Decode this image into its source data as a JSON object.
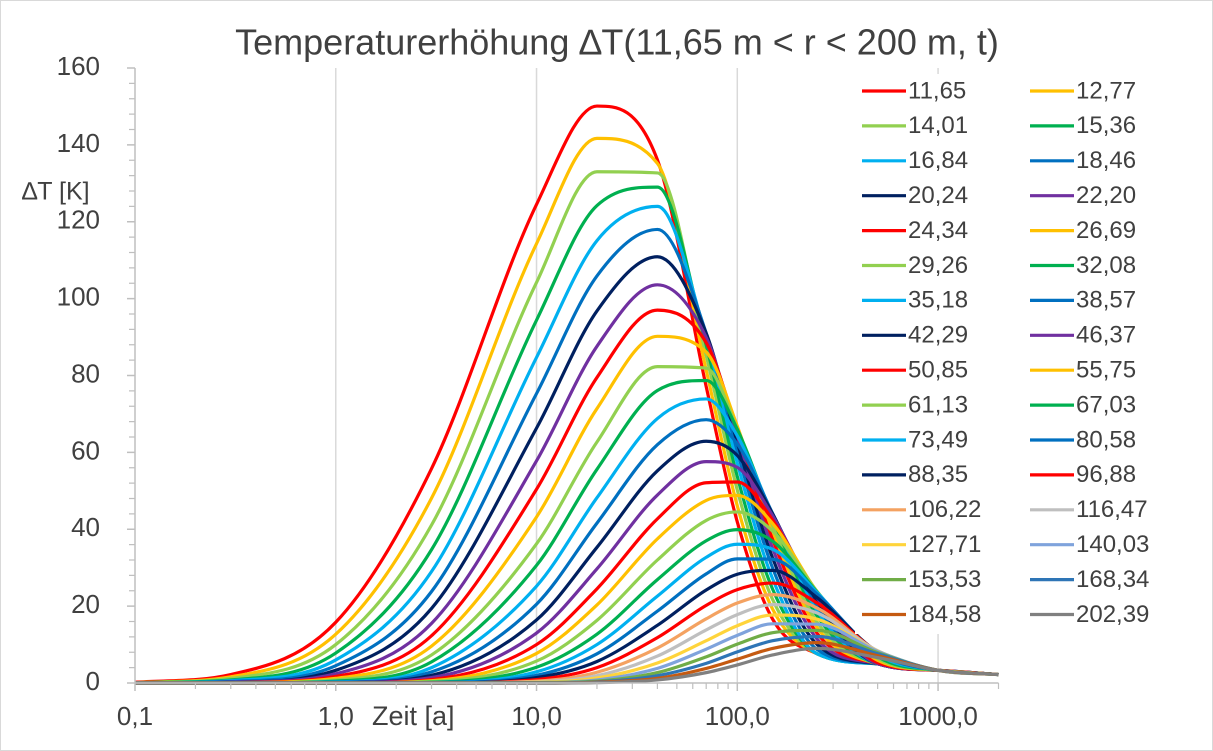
{
  "chart_data": {
    "type": "line",
    "title": "Temperaturerhöhung ∆T(11,65 m < r < 200 m, t)",
    "y_label": "∆T [K]",
    "x_label": "Zeit [a]",
    "x_scale": "log",
    "xlim": [
      0.1,
      2000
    ],
    "xticks": [
      {
        "value": 0.1,
        "label": "0,1"
      },
      {
        "value": 1,
        "label": "1,0"
      },
      {
        "value": 10,
        "label": "10,0"
      },
      {
        "value": 100,
        "label": "100,0"
      },
      {
        "value": 1000,
        "label": "1000,0"
      }
    ],
    "ylim": [
      0,
      160
    ],
    "yticks": [
      0,
      20,
      40,
      60,
      80,
      100,
      120,
      140,
      160
    ],
    "grid": "x",
    "legend": "right",
    "x": [
      0.1,
      0.3,
      1,
      3,
      10,
      20,
      40,
      70,
      100,
      150,
      250,
      500,
      1000,
      2000
    ],
    "series": [
      {
        "name": "11,65",
        "color": "#ff0000",
        "values": [
          0.2,
          2.2,
          15.8,
          55.8,
          124.5,
          150.1,
          136.1,
          77.1,
          41.9,
          16.6,
          7.6,
          5,
          3.3,
          2.2
        ]
      },
      {
        "name": "12,77",
        "color": "#ffc000",
        "values": [
          0.1,
          1.6,
          12.7,
          48.1,
          114.3,
          141.7,
          135.2,
          81.4,
          46.1,
          19.2,
          7.6,
          5,
          3.3,
          2.2
        ]
      },
      {
        "name": "14,01",
        "color": "#92d050",
        "values": [
          0.1,
          1.2,
          10.0,
          41.1,
          104.2,
          133.0,
          132.7,
          85.2,
          50.2,
          21.7,
          7.6,
          5,
          3.3,
          2.2
        ]
      },
      {
        "name": "15,36",
        "color": "#00b050",
        "values": [
          0.1,
          0.8,
          7.8,
          34.7,
          94.4,
          124.2,
          129.0,
          87.9,
          53.7,
          24.4,
          7.6,
          5,
          3.3,
          2.2
        ]
      },
      {
        "name": "16,84",
        "color": "#00b0f0",
        "values": [
          0,
          0.6,
          6.0,
          29.0,
          84.7,
          115.1,
          124.0,
          89.9,
          57.2,
          27.1,
          7.6,
          5,
          3.3,
          2.2
        ]
      },
      {
        "name": "18,46",
        "color": "#0070c0",
        "values": [
          0,
          0.4,
          4.5,
          23.8,
          75.3,
          105.9,
          118.0,
          91.0,
          60.3,
          29.9,
          8.7,
          5,
          3.3,
          2.2
        ]
      },
      {
        "name": "20,24",
        "color": "#002060",
        "values": [
          0,
          0.2,
          3.3,
          19.4,
          66.3,
          96.8,
          110.9,
          91.0,
          62.6,
          32.5,
          10.0,
          5,
          3.3,
          2.2
        ]
      },
      {
        "name": "22,20",
        "color": "#7030a0",
        "values": [
          0,
          0.2,
          2.4,
          15.5,
          57.8,
          87.6,
          103.6,
          89.9,
          64.4,
          35.0,
          11.4,
          5,
          3.3,
          2.2
        ]
      },
      {
        "name": "24,34",
        "color": "#ff0000",
        "values": [
          0,
          0.1,
          1.7,
          12.3,
          50.4,
          79.5,
          97.0,
          88.5,
          65.9,
          37.4,
          12.9,
          5,
          3.3,
          2.2
        ]
      },
      {
        "name": "26,69",
        "color": "#ffc000",
        "values": [
          0,
          0.1,
          1.2,
          9.6,
          43.2,
          71.4,
          90.2,
          86.1,
          66.8,
          39.6,
          14.4,
          5,
          3.3,
          2.2
        ]
      },
      {
        "name": "29,26",
        "color": "#92d050",
        "values": [
          0,
          0,
          0.8,
          7.3,
          36.2,
          62.7,
          82.3,
          81.9,
          66.1,
          41.0,
          15.8,
          5,
          3.3,
          2.2
        ]
      },
      {
        "name": "32,08",
        "color": "#00b050",
        "values": [
          0,
          0,
          0.5,
          5.5,
          30.6,
          55.6,
          76.1,
          78.7,
          66.0,
          42.9,
          17.4,
          5,
          3.3,
          2.2
        ]
      },
      {
        "name": "35,18",
        "color": "#00b0f0",
        "values": [
          0,
          0,
          0.3,
          4.0,
          25.2,
          48.2,
          68.8,
          73.9,
          64.3,
          43.7,
          18.8,
          5,
          3.3,
          2.2
        ]
      },
      {
        "name": "38,57",
        "color": "#0070c0",
        "values": [
          0,
          0,
          0.2,
          2.9,
          20.5,
          41.6,
          62.0,
          68.5,
          62.2,
          44.1,
          20.1,
          5,
          3.3,
          2.2
        ]
      },
      {
        "name": "42,29",
        "color": "#002060",
        "values": [
          0,
          0,
          0.1,
          2.0,
          16.4,
          35.3,
          55.2,
          62.9,
          59.2,
          44.0,
          21.2,
          5,
          3.3,
          2.2
        ]
      },
      {
        "name": "46,37",
        "color": "#7030a0",
        "values": [
          0,
          0,
          0.1,
          1.4,
          13.0,
          29.7,
          48.9,
          57.6,
          56.1,
          43.5,
          22.2,
          5,
          3.3,
          2.2
        ]
      },
      {
        "name": "50,85",
        "color": "#ff0000",
        "values": [
          0,
          0,
          0,
          0.9,
          10.0,
          24.5,
          42.7,
          52.1,
          52.3,
          42.4,
          22.9,
          5.3,
          3.3,
          2.2
        ]
      },
      {
        "name": "55,75",
        "color": "#ffc000",
        "values": [
          0,
          0,
          0,
          0.6,
          7.7,
          20.3,
          37.5,
          47.5,
          48.8,
          41.5,
          23.7,
          5.9,
          3.3,
          2.2
        ]
      },
      {
        "name": "61,13",
        "color": "#92d050",
        "values": [
          0,
          0,
          0,
          0.4,
          5.7,
          16.3,
          32.0,
          42.3,
          44.5,
          39.5,
          23.8,
          6.4,
          3.3,
          2.2
        ]
      },
      {
        "name": "67,03",
        "color": "#00b050",
        "values": [
          0,
          0,
          0,
          0.2,
          4.1,
          12.7,
          26.9,
          37.0,
          39.9,
          36.9,
          23.6,
          6.9,
          3.3,
          2.2
        ]
      },
      {
        "name": "73,49",
        "color": "#00b0f0",
        "values": [
          0,
          0,
          0,
          0.1,
          2.9,
          10.0,
          22.6,
          32.7,
          36.1,
          34.8,
          23.5,
          7.4,
          3.3,
          2.2
        ]
      },
      {
        "name": "80,58",
        "color": "#0070c0",
        "values": [
          0,
          0,
          0,
          0.1,
          2.0,
          7.6,
          18.7,
          28.4,
          32.3,
          32.2,
          23.1,
          7.8,
          3.3,
          2.2
        ]
      },
      {
        "name": "88,35",
        "color": "#002060",
        "values": [
          0,
          0,
          0,
          0,
          1.4,
          5.6,
          15.0,
          24.2,
          28.3,
          29.3,
          22.2,
          8.1,
          3.3,
          2.2
        ]
      },
      {
        "name": "96,88",
        "color": "#ff0000",
        "values": [
          0,
          0,
          0,
          0,
          0.9,
          4.0,
          11.8,
          20.2,
          24.3,
          26.0,
          20.8,
          8.2,
          3.3,
          2.2
        ]
      },
      {
        "name": "106,22",
        "color": "#f4a261",
        "values": [
          0,
          0,
          0,
          0,
          0.5,
          2.8,
          9.1,
          16.7,
          20.8,
          23.0,
          19.5,
          8.3,
          3.3,
          2.2
        ]
      },
      {
        "name": "116,47",
        "color": "#bfbfbf",
        "values": [
          0,
          0,
          0,
          0,
          0.3,
          1.9,
          7.0,
          13.8,
          17.8,
          20.4,
          18.2,
          8.4,
          3.3,
          2.2
        ]
      },
      {
        "name": "127,71",
        "color": "#ffd43b",
        "values": [
          0,
          0,
          0,
          0,
          0.2,
          1.3,
          5.2,
          11.0,
          14.9,
          17.7,
          16.6,
          8.3,
          3.3,
          2.2
        ]
      },
      {
        "name": "140,03",
        "color": "#7fa3dc",
        "values": [
          0,
          0,
          0,
          0,
          0.1,
          0.8,
          3.8,
          8.8,
          12.4,
          15.4,
          15.3,
          8.2,
          3.3,
          2.2
        ]
      },
      {
        "name": "153,53",
        "color": "#70ad47",
        "values": [
          0,
          0,
          0,
          0,
          0.1,
          0.5,
          2.7,
          6.8,
          10.1,
          13.1,
          13.7,
          7.9,
          3.3,
          2.2
        ]
      },
      {
        "name": "168,34",
        "color": "#2e75b6",
        "values": [
          0,
          0,
          0,
          0,
          0,
          0.3,
          1.9,
          5.1,
          8.1,
          11.0,
          12.1,
          7.6,
          3.3,
          2.2
        ]
      },
      {
        "name": "184,58",
        "color": "#c55a11",
        "values": [
          0,
          0,
          0,
          0,
          0,
          0.2,
          1.2,
          3.8,
          6.2,
          9.0,
          10.5,
          7.1,
          3.3,
          2.2
        ]
      },
      {
        "name": "202,39",
        "color": "#808080",
        "values": [
          0,
          0,
          0,
          0,
          0,
          0.1,
          0.8,
          2.7,
          4.7,
          7.3,
          9.0,
          6.6,
          3.3,
          2.2
        ]
      }
    ]
  }
}
